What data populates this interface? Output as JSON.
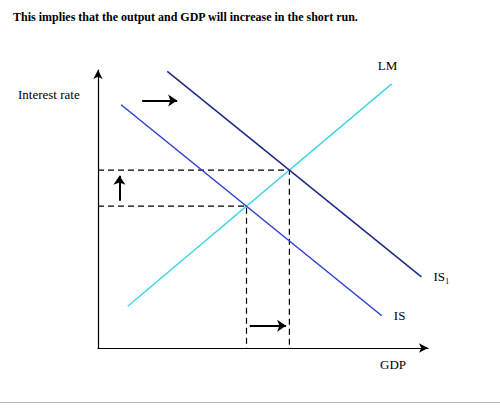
{
  "chart_data": {
    "type": "line",
    "title": "This implies that the output and GDP will increase in the short run.",
    "x_label": "GDP",
    "y_label": "Interest rate",
    "xlim": [
      0,
      100
    ],
    "ylim": [
      0,
      100
    ],
    "tick_labels": false,
    "grid": false,
    "series": [
      {
        "name": "LM",
        "color": "#3fd6e8",
        "x": [
          9,
          89
        ],
        "values": [
          15,
          95
        ]
      },
      {
        "name": "IS₁",
        "color": "#1c2a80",
        "x": [
          21,
          98
        ],
        "values": [
          99.5,
          25.6
        ]
      },
      {
        "name": "IS",
        "color": "#2f3fd0",
        "x": [
          7,
          86
        ],
        "values": [
          87.5,
          11.6
        ]
      }
    ],
    "equilibria": [
      {
        "x": 45,
        "y": 51
      },
      {
        "x": 58,
        "y": 64
      }
    ]
  }
}
